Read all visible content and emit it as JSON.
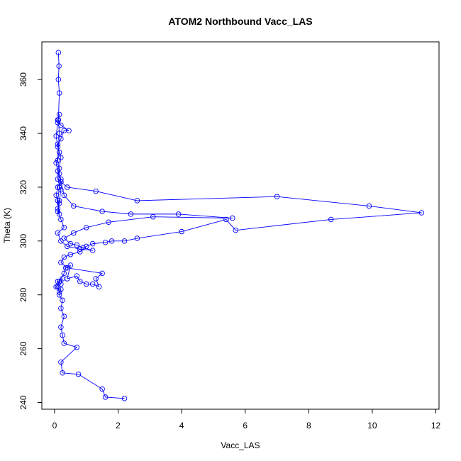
{
  "chart_data": {
    "type": "line",
    "title": "ATOM2 Northbound Vacc_LAS",
    "xlabel": "Vacc_LAS",
    "ylabel": "Theta (K)",
    "xlim": [
      -0.4,
      12.1
    ],
    "ylim": [
      237.5,
      374
    ],
    "x_ticks": [
      "0",
      "2",
      "4",
      "6",
      "8",
      "10",
      "12"
    ],
    "y_ticks": [
      "240",
      "260",
      "280",
      "300",
      "320",
      "340",
      "360"
    ],
    "grid": false,
    "legend": "none",
    "line_style": "points-connected-by-lines",
    "marker": "open-circle",
    "series_color": "#0000ff",
    "series": [
      {
        "x": [
          2.2,
          1.6,
          1.5,
          0.75,
          0.25,
          0.2,
          0.7,
          0.3,
          0.25,
          0.2,
          0.3,
          0.2,
          0.25,
          0.15,
          0.2,
          0.1,
          0.25,
          0.2,
          0.1,
          0.15,
          0.05,
          0.15,
          0.3,
          0.35,
          0.5,
          0.4,
          0.7,
          0.8,
          1.0,
          1.2,
          1.4,
          1.3,
          1.5,
          0.4,
          0.2,
          0.3,
          0.5,
          0.8,
          1.0,
          1.2,
          1.6,
          1.8,
          2.2,
          2.6,
          4.0,
          5.4,
          5.7,
          8.7,
          11.55,
          9.9,
          7.0,
          2.6,
          1.3,
          0.4,
          0.2,
          0.3,
          0.6,
          1.5,
          2.4,
          3.9,
          5.6,
          3.1,
          1.7,
          1.0,
          0.6,
          0.3,
          0.5,
          0.7,
          0.9,
          1.2,
          0.8,
          0.4,
          0.2,
          0.1,
          0.3,
          0.2,
          0.1,
          0.15,
          0.05,
          0.1,
          0.2,
          0.1,
          0.05,
          0.15,
          0.1,
          0.2,
          0.3,
          0.45,
          0.2,
          0.1,
          0.15,
          0.1,
          0.05,
          0.1,
          0.2,
          0.15,
          0.1,
          0.2,
          0.15,
          0.1,
          0.15,
          0.1,
          0.15,
          0.2,
          0.15,
          0.1,
          0.15,
          0.12,
          0.15,
          0.12,
          0.14,
          0.12
        ],
        "y": [
          241.5,
          242,
          245,
          250.5,
          251,
          255,
          260.5,
          262,
          265,
          268,
          272,
          275,
          278,
          280,
          282,
          285,
          286,
          284,
          283,
          281,
          283,
          285,
          288,
          290,
          291,
          286,
          287,
          285,
          284,
          284,
          283,
          286,
          288,
          290,
          292,
          294,
          295,
          296,
          298,
          299,
          299.5,
          300,
          300,
          301,
          303.5,
          308,
          304,
          308,
          310.5,
          313,
          316.5,
          315,
          318.5,
          320,
          322,
          317,
          313,
          311,
          310,
          310,
          308.5,
          309,
          307,
          305,
          303,
          301,
          299,
          298.5,
          297.5,
          296.5,
          297,
          298,
          300,
          303,
          305,
          308,
          311,
          314,
          317,
          320,
          323,
          326,
          329,
          333,
          336,
          338,
          341,
          341,
          343,
          345,
          347,
          344,
          339,
          335,
          331,
          327,
          323,
          319,
          315,
          312,
          310,
          315,
          320,
          322,
          325,
          330,
          340,
          345,
          355,
          360,
          365,
          370
        ]
      }
    ]
  }
}
